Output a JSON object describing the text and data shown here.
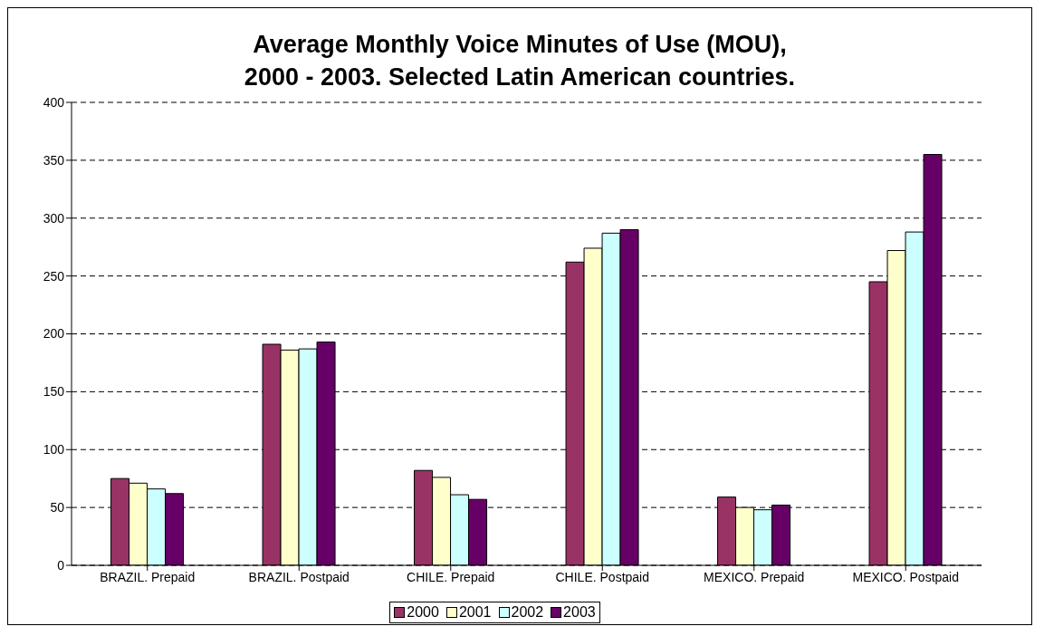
{
  "chart_data": {
    "type": "bar",
    "title": "Average Monthly Voice Minutes of Use (MOU),\n2000 - 2003. Selected Latin American countries.",
    "categories": [
      "BRAZIL. Prepaid",
      "BRAZIL. Postpaid",
      "CHILE. Prepaid",
      "CHILE. Postpaid",
      "MEXICO. Prepaid",
      "MEXICO. Postpaid"
    ],
    "series": [
      {
        "name": "2000",
        "color": "#993366",
        "values": [
          75,
          191,
          82,
          262,
          59,
          245
        ]
      },
      {
        "name": "2001",
        "color": "#ffffcc",
        "values": [
          71,
          186,
          76,
          274,
          50,
          272
        ]
      },
      {
        "name": "2002",
        "color": "#ccffff",
        "values": [
          66,
          187,
          61,
          287,
          48,
          288
        ]
      },
      {
        "name": "2003",
        "color": "#660066",
        "values": [
          62,
          193,
          57,
          290,
          52,
          355
        ]
      }
    ],
    "ylim": [
      0,
      400
    ],
    "yticks": [
      0,
      50,
      100,
      150,
      200,
      250,
      300,
      350,
      400
    ],
    "grid": "y",
    "legend": "bottom"
  }
}
